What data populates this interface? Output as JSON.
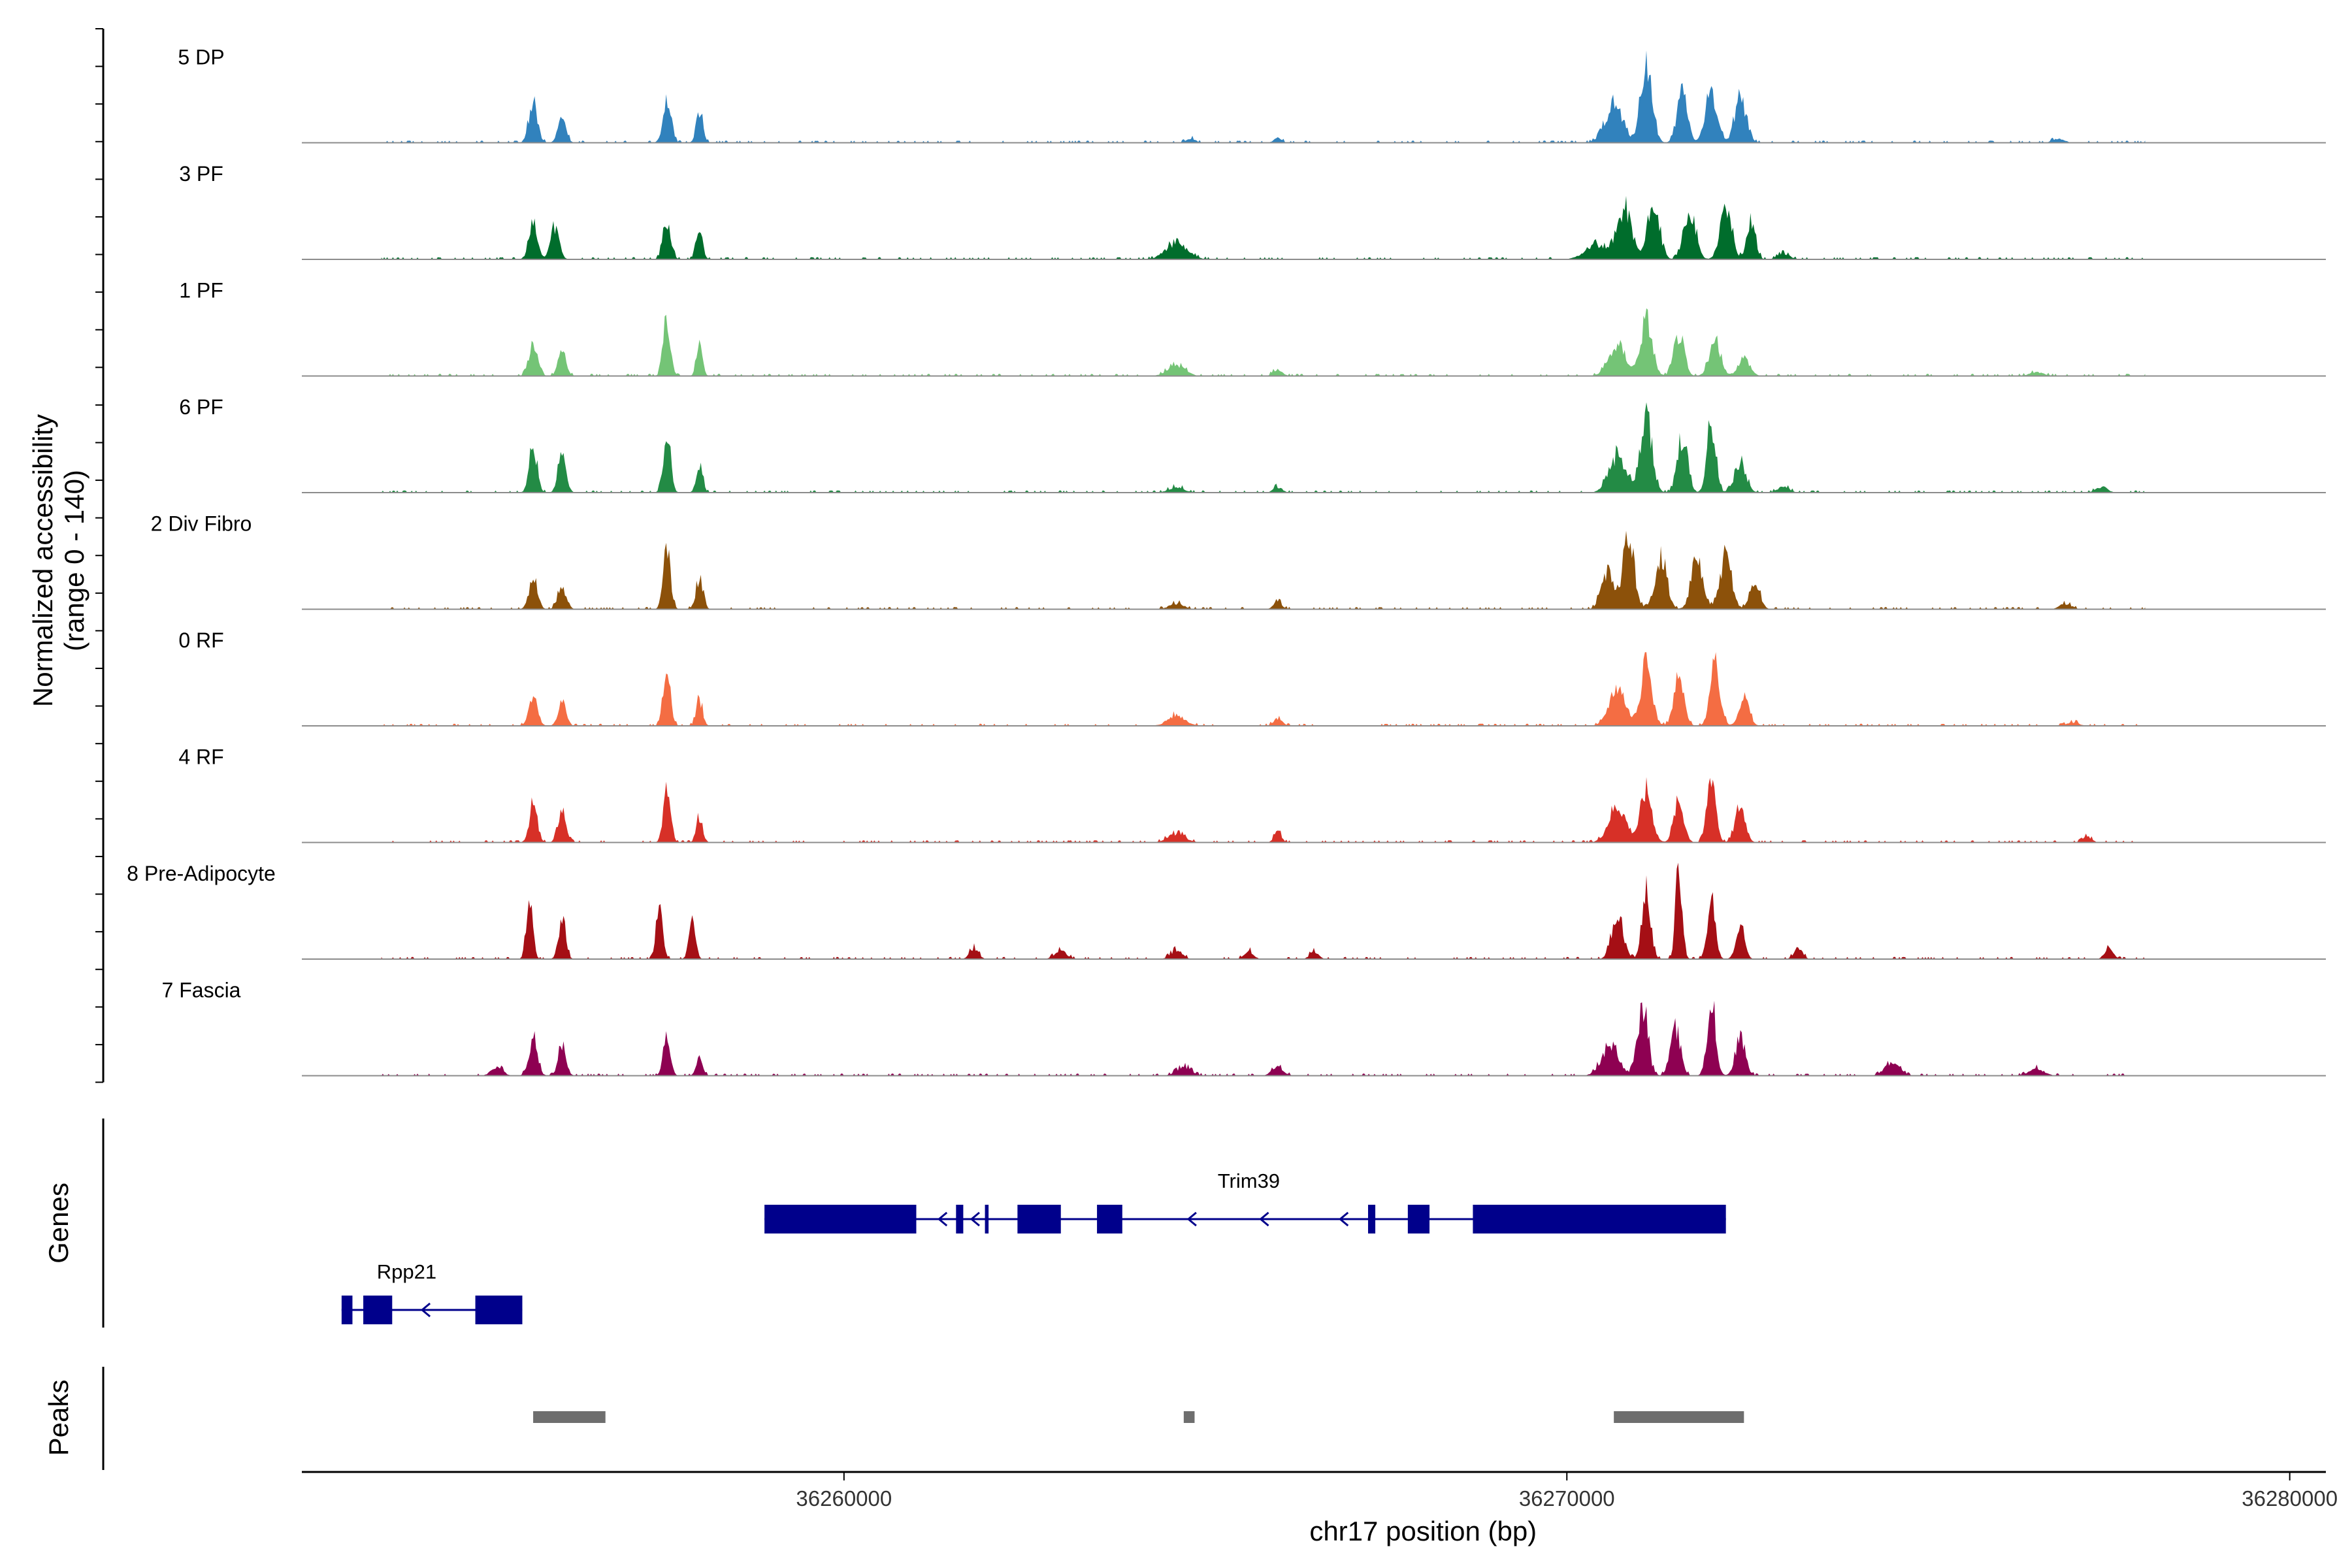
{
  "chart_data": {
    "type": "area",
    "title": "",
    "xlabel": "chr17 position (bp)",
    "ylabel": "Normalized accessibility",
    "ylabel_range": "(range 0 - 140)",
    "y_range": [
      0,
      140
    ],
    "x_range": [
      36252500,
      36280500
    ],
    "x_ticks": [
      36260000,
      36270000,
      36280000
    ],
    "x_tick_labels": [
      "36260000",
      "36270000",
      "36280000"
    ],
    "tracks": [
      {
        "name": "5 DP",
        "color": "#3182BD",
        "peaks": [
          [
            36255700,
            55,
            60
          ],
          [
            36256100,
            35,
            55
          ],
          [
            36257550,
            60,
            55
          ],
          [
            36258000,
            45,
            45
          ],
          [
            36264800,
            6,
            60
          ],
          [
            36266000,
            8,
            50
          ],
          [
            36270650,
            50,
            120
          ],
          [
            36271100,
            105,
            80
          ],
          [
            36271600,
            72,
            70
          ],
          [
            36272000,
            70,
            80
          ],
          [
            36272400,
            58,
            80
          ],
          [
            36276800,
            6,
            80
          ]
        ]
      },
      {
        "name": "3 PF",
        "color": "#006D2C",
        "peaks": [
          [
            36255700,
            45,
            60
          ],
          [
            36256000,
            45,
            60
          ],
          [
            36257550,
            50,
            55
          ],
          [
            36258000,
            40,
            45
          ],
          [
            36264600,
            22,
            150
          ],
          [
            36270400,
            20,
            150
          ],
          [
            36270800,
            70,
            100
          ],
          [
            36271200,
            75,
            80
          ],
          [
            36271700,
            68,
            80
          ],
          [
            36272200,
            70,
            80
          ],
          [
            36272550,
            52,
            60
          ],
          [
            36273000,
            8,
            80
          ]
        ]
      },
      {
        "name": "1 PF",
        "color": "#74C476",
        "peaks": [
          [
            36255700,
            45,
            60
          ],
          [
            36256100,
            35,
            55
          ],
          [
            36257550,
            75,
            50
          ],
          [
            36258000,
            45,
            40
          ],
          [
            36264600,
            15,
            120
          ],
          [
            36266000,
            10,
            60
          ],
          [
            36270700,
            40,
            120
          ],
          [
            36271100,
            75,
            80
          ],
          [
            36271550,
            55,
            70
          ],
          [
            36272050,
            45,
            80
          ],
          [
            36272450,
            25,
            80
          ],
          [
            36276500,
            5,
            100
          ]
        ]
      },
      {
        "name": "6 PF",
        "color": "#238B45",
        "peaks": [
          [
            36255700,
            60,
            55
          ],
          [
            36256100,
            55,
            55
          ],
          [
            36257550,
            80,
            50
          ],
          [
            36258000,
            40,
            45
          ],
          [
            36264600,
            8,
            100
          ],
          [
            36266000,
            8,
            60
          ],
          [
            36270700,
            50,
            120
          ],
          [
            36271100,
            100,
            80
          ],
          [
            36271600,
            75,
            70
          ],
          [
            36272000,
            95,
            60
          ],
          [
            36272400,
            40,
            80
          ],
          [
            36273000,
            8,
            80
          ],
          [
            36277400,
            8,
            80
          ]
        ]
      },
      {
        "name": "2 Div Fibro",
        "color": "#8C510A",
        "peaks": [
          [
            36255700,
            40,
            60
          ],
          [
            36256100,
            30,
            60
          ],
          [
            36257550,
            80,
            50
          ],
          [
            36258000,
            40,
            50
          ],
          [
            36264600,
            8,
            100
          ],
          [
            36266000,
            10,
            60
          ],
          [
            36270550,
            50,
            80
          ],
          [
            36270850,
            95,
            80
          ],
          [
            36271300,
            70,
            80
          ],
          [
            36271800,
            65,
            80
          ],
          [
            36272200,
            70,
            80
          ],
          [
            36272600,
            35,
            70
          ],
          [
            36276900,
            8,
            80
          ]
        ]
      },
      {
        "name": "0 RF",
        "color": "#F46D43",
        "peaks": [
          [
            36255700,
            40,
            60
          ],
          [
            36256100,
            35,
            55
          ],
          [
            36257550,
            80,
            50
          ],
          [
            36258000,
            35,
            45
          ],
          [
            36264600,
            15,
            120
          ],
          [
            36266000,
            10,
            60
          ],
          [
            36270700,
            55,
            110
          ],
          [
            36271100,
            80,
            80
          ],
          [
            36271550,
            65,
            70
          ],
          [
            36272050,
            80,
            70
          ],
          [
            36272450,
            40,
            70
          ],
          [
            36277000,
            5,
            80
          ]
        ]
      },
      {
        "name": "4 RF",
        "color": "#D73027",
        "peaks": [
          [
            36255700,
            50,
            55
          ],
          [
            36256100,
            45,
            55
          ],
          [
            36257550,
            70,
            50
          ],
          [
            36258000,
            35,
            45
          ],
          [
            36264600,
            12,
            120
          ],
          [
            36266000,
            15,
            50
          ],
          [
            36270700,
            50,
            120
          ],
          [
            36271100,
            70,
            80
          ],
          [
            36271550,
            55,
            70
          ],
          [
            36272000,
            95,
            60
          ],
          [
            36272400,
            50,
            70
          ],
          [
            36277200,
            8,
            60
          ]
        ]
      },
      {
        "name": "8 Pre-Adipocyte",
        "color": "#A50F15",
        "peaks": [
          [
            36255650,
            80,
            45
          ],
          [
            36256100,
            55,
            50
          ],
          [
            36257450,
            75,
            45
          ],
          [
            36257900,
            55,
            45
          ],
          [
            36261800,
            15,
            60
          ],
          [
            36263000,
            12,
            80
          ],
          [
            36264600,
            12,
            80
          ],
          [
            36265600,
            12,
            60
          ],
          [
            36266500,
            10,
            60
          ],
          [
            36270700,
            60,
            80
          ],
          [
            36271100,
            90,
            60
          ],
          [
            36271550,
            120,
            45
          ],
          [
            36272000,
            80,
            55
          ],
          [
            36272400,
            45,
            60
          ],
          [
            36273200,
            15,
            60
          ],
          [
            36277500,
            15,
            60
          ]
        ]
      },
      {
        "name": "7 Fascia",
        "color": "#8E0152",
        "peaks": [
          [
            36255200,
            12,
            80
          ],
          [
            36255700,
            50,
            60
          ],
          [
            36256100,
            40,
            55
          ],
          [
            36257550,
            50,
            50
          ],
          [
            36258000,
            25,
            45
          ],
          [
            36264700,
            12,
            100
          ],
          [
            36266000,
            12,
            80
          ],
          [
            36270600,
            40,
            120
          ],
          [
            36271050,
            95,
            70
          ],
          [
            36271500,
            65,
            70
          ],
          [
            36272000,
            100,
            60
          ],
          [
            36272400,
            50,
            70
          ],
          [
            36274500,
            18,
            100
          ],
          [
            36276500,
            10,
            100
          ]
        ]
      }
    ],
    "genes": [
      {
        "name": "Trim39",
        "color": "#00008B",
        "start": 36258900,
        "end": 36272200,
        "strand": "-",
        "exons": [
          [
            36258900,
            36261000
          ],
          [
            36261550,
            36261650
          ],
          [
            36261950,
            36262000
          ],
          [
            36262400,
            36263000
          ],
          [
            36263500,
            36263850
          ],
          [
            36267250,
            36267350
          ],
          [
            36267800,
            36268100
          ],
          [
            36268700,
            36272200
          ]
        ],
        "arrows": [
          36261350,
          36261800,
          36264800,
          36265800,
          36266900
        ]
      },
      {
        "name": "Rpp21",
        "color": "#00008B",
        "start": 36253050,
        "end": 36255550,
        "strand": "-",
        "exons": [
          [
            36253050,
            36253200
          ],
          [
            36253350,
            36253750
          ],
          [
            36254900,
            36255550
          ]
        ],
        "arrows": [
          36254200
        ]
      }
    ],
    "peak_regions": [
      [
        36255700,
        36256700
      ],
      [
        36264700,
        36264850
      ],
      [
        36270650,
        36272450
      ]
    ],
    "panel_labels": {
      "genes": "Genes",
      "peaks": "Peaks"
    },
    "peak_color": "#6E6E6E"
  }
}
